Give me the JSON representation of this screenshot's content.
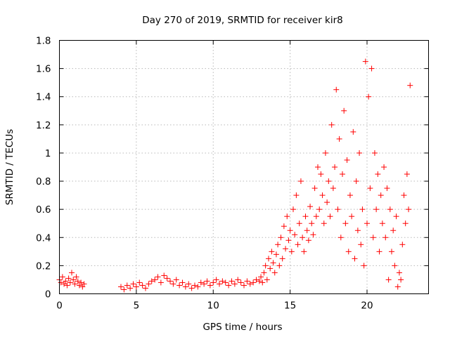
{
  "chart_data": {
    "type": "scatter",
    "title": "Day 270 of 2019, SRMTID for receiver kir8",
    "xlabel": "GPS time / hours",
    "ylabel": "SRMTID / TECUs",
    "xlim": [
      0,
      24
    ],
    "ylim": [
      0,
      1.8
    ],
    "xticks": [
      0,
      5,
      10,
      15,
      20
    ],
    "xtick_labels": [
      "0",
      "5",
      "10",
      "15",
      "20"
    ],
    "yticks": [
      0,
      0.2,
      0.4,
      0.6,
      0.8,
      1,
      1.2,
      1.4,
      1.6,
      1.8
    ],
    "ytick_labels": [
      "0",
      "0.2",
      "0.4",
      "0.6",
      "0.8",
      "1",
      "1.2",
      "1.4",
      "1.6",
      "1.8"
    ],
    "grid": true,
    "marker": "+",
    "color": "#ff0000",
    "series": [
      {
        "name": "SRMTID",
        "x": [
          0.0,
          0.1,
          0.2,
          0.3,
          0.4,
          0.5,
          0.6,
          0.7,
          0.8,
          0.9,
          1.0,
          1.1,
          1.2,
          1.3,
          1.4,
          1.5,
          1.6,
          4.0,
          4.2,
          4.4,
          4.6,
          4.8,
          5.0,
          5.2,
          5.4,
          5.6,
          5.8,
          6.0,
          6.2,
          6.4,
          6.6,
          6.8,
          7.0,
          7.2,
          7.4,
          7.6,
          7.8,
          8.0,
          8.2,
          8.4,
          8.6,
          8.8,
          9.0,
          9.2,
          9.4,
          9.6,
          9.8,
          10.0,
          10.2,
          10.4,
          10.6,
          10.8,
          11.0,
          11.2,
          11.4,
          11.6,
          11.8,
          12.0,
          12.2,
          12.4,
          12.6,
          12.8,
          13.0,
          13.1,
          13.2,
          13.3,
          13.4,
          13.5,
          13.6,
          13.7,
          13.8,
          13.9,
          14.0,
          14.1,
          14.2,
          14.3,
          14.4,
          14.5,
          14.6,
          14.7,
          14.8,
          14.9,
          15.0,
          15.1,
          15.2,
          15.3,
          15.4,
          15.5,
          15.6,
          15.7,
          15.8,
          15.9,
          16.0,
          16.1,
          16.2,
          16.3,
          16.4,
          16.5,
          16.6,
          16.7,
          16.8,
          16.9,
          17.0,
          17.1,
          17.2,
          17.3,
          17.4,
          17.5,
          17.6,
          17.7,
          17.8,
          17.9,
          18.0,
          18.1,
          18.2,
          18.3,
          18.4,
          18.5,
          18.6,
          18.7,
          18.8,
          18.9,
          19.0,
          19.1,
          19.2,
          19.3,
          19.4,
          19.5,
          19.6,
          19.7,
          19.8,
          19.9,
          20.0,
          20.1,
          20.2,
          20.3,
          20.4,
          20.5,
          20.6,
          20.7,
          20.8,
          20.9,
          21.0,
          21.1,
          21.2,
          21.3,
          21.4,
          21.5,
          21.6,
          21.7,
          21.8,
          21.9,
          22.0,
          22.1,
          22.2,
          22.3,
          22.4,
          22.5,
          22.6,
          22.7,
          22.8
        ],
        "y": [
          0.1,
          0.08,
          0.12,
          0.07,
          0.09,
          0.06,
          0.11,
          0.08,
          0.15,
          0.1,
          0.07,
          0.12,
          0.09,
          0.06,
          0.08,
          0.05,
          0.07,
          0.05,
          0.03,
          0.06,
          0.04,
          0.07,
          0.05,
          0.08,
          0.06,
          0.04,
          0.07,
          0.09,
          0.1,
          0.12,
          0.08,
          0.13,
          0.11,
          0.09,
          0.07,
          0.1,
          0.06,
          0.08,
          0.05,
          0.07,
          0.04,
          0.06,
          0.05,
          0.08,
          0.07,
          0.09,
          0.06,
          0.08,
          0.1,
          0.07,
          0.09,
          0.08,
          0.06,
          0.09,
          0.07,
          0.1,
          0.08,
          0.06,
          0.09,
          0.07,
          0.08,
          0.1,
          0.09,
          0.12,
          0.08,
          0.15,
          0.2,
          0.1,
          0.25,
          0.18,
          0.3,
          0.22,
          0.15,
          0.28,
          0.35,
          0.2,
          0.4,
          0.25,
          0.48,
          0.32,
          0.55,
          0.38,
          0.45,
          0.3,
          0.6,
          0.42,
          0.7,
          0.35,
          0.5,
          0.8,
          0.4,
          0.3,
          0.55,
          0.45,
          0.38,
          0.62,
          0.5,
          0.42,
          0.75,
          0.55,
          0.9,
          0.6,
          0.85,
          0.7,
          0.5,
          1.0,
          0.65,
          0.8,
          0.55,
          1.2,
          0.75,
          0.9,
          1.45,
          0.6,
          1.1,
          0.4,
          0.85,
          1.3,
          0.5,
          0.95,
          0.3,
          0.7,
          0.55,
          1.15,
          0.25,
          0.8,
          0.45,
          1.0,
          0.35,
          0.6,
          0.2,
          1.65,
          0.5,
          1.4,
          0.75,
          1.6,
          0.4,
          1.0,
          0.6,
          0.85,
          0.3,
          0.7,
          0.5,
          0.9,
          0.4,
          0.75,
          0.1,
          0.6,
          0.3,
          0.45,
          0.2,
          0.55,
          0.05,
          0.15,
          0.1,
          0.35,
          0.7,
          0.5,
          0.85,
          0.6,
          1.48
        ]
      }
    ]
  }
}
